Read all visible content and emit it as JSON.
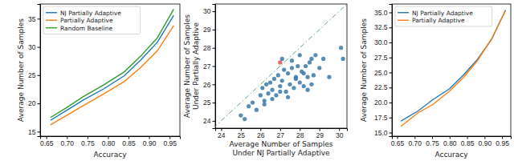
{
  "chart_data": [
    {
      "type": "line",
      "x_label": "Accuracy",
      "y_label": "Average Number of Samples",
      "x": [
        0.66,
        0.7,
        0.74,
        0.79,
        0.84,
        0.88,
        0.92,
        0.96
      ],
      "series": [
        {
          "name": "NJ Partially Adaptive",
          "color": "#1f77b4",
          "values": [
            17.0,
            18.8,
            20.6,
            22.6,
            24.9,
            27.7,
            30.8,
            35.6
          ]
        },
        {
          "name": "Partially Adaptive",
          "color": "#ff7f0e",
          "values": [
            16.2,
            17.9,
            19.6,
            21.7,
            23.9,
            26.4,
            29.3,
            33.8
          ]
        },
        {
          "name": "Random Baseline",
          "color": "#2ca02c",
          "values": [
            17.5,
            19.3,
            21.2,
            23.3,
            25.6,
            28.4,
            31.6,
            36.7
          ]
        }
      ],
      "xlim": [
        0.635,
        0.975
      ],
      "ylim": [
        14.2,
        37.6
      ],
      "xticks": [
        {
          "value": 0.65,
          "label": "0.65"
        },
        {
          "value": 0.7,
          "label": "0.70"
        },
        {
          "value": 0.75,
          "label": "0.75"
        },
        {
          "value": 0.8,
          "label": "0.80"
        },
        {
          "value": 0.85,
          "label": "0.85"
        },
        {
          "value": 0.9,
          "label": "0.90"
        },
        {
          "value": 0.95,
          "label": "0.95"
        }
      ],
      "yticks": [
        15,
        20,
        25,
        30,
        35
      ],
      "legend": "upper left",
      "grid": false
    },
    {
      "type": "scatter",
      "x_label": [
        "Average Number of Samples",
        "Under NJ Partially Adaptive"
      ],
      "y_label": [
        "Average Number of Samples",
        "Under Partially Adaptive"
      ],
      "series": [
        {
          "color": "#3a78a8",
          "x": [
            25.0,
            25.2,
            25.4,
            25.6,
            25.8,
            26.0,
            26.1,
            26.2,
            26.3,
            26.4,
            26.5,
            26.6,
            26.7,
            26.8,
            26.9,
            27.0,
            27.1,
            27.2,
            27.3,
            27.4,
            27.5,
            27.6,
            27.7,
            27.8,
            27.9,
            28.0,
            28.1,
            28.2,
            28.3,
            28.4,
            28.5,
            28.6,
            28.7,
            28.8,
            29.0,
            29.2,
            29.5,
            30.1,
            30.2,
            26.2,
            26.6,
            27.0,
            27.4,
            27.8,
            28.2,
            28.6,
            27.1,
            27.6,
            28.0,
            28.4
          ],
          "values": [
            24.3,
            24.1,
            24.8,
            25.0,
            24.6,
            25.4,
            25.8,
            25.1,
            26.0,
            25.5,
            26.1,
            25.7,
            26.3,
            25.4,
            26.5,
            25.9,
            26.2,
            26.8,
            25.6,
            26.6,
            26.0,
            26.9,
            25.8,
            26.4,
            27.0,
            26.1,
            26.7,
            25.9,
            27.0,
            26.4,
            27.2,
            26.0,
            26.5,
            27.6,
            26.9,
            27.4,
            26.4,
            28.0,
            27.4,
            24.9,
            25.2,
            25.6,
            25.3,
            26.3,
            26.6,
            27.4,
            27.4,
            27.3,
            27.6,
            25.7
          ]
        },
        {
          "color": "#d9534f",
          "x": [
            27.0
          ],
          "values": [
            27.2
          ]
        }
      ],
      "xlim": [
        23.7,
        30.4
      ],
      "ylim": [
        23.6,
        30.4
      ],
      "xticks": [
        24,
        25,
        26,
        27,
        28,
        29,
        30
      ],
      "yticks": [
        24,
        25,
        26,
        27,
        28,
        29,
        30
      ],
      "line_style": "dashdot",
      "grid": false
    },
    {
      "type": "line",
      "x_label": "Accuracy",
      "y_label": "Average Number of Samples",
      "x": [
        0.66,
        0.71,
        0.75,
        0.8,
        0.84,
        0.88,
        0.92,
        0.96
      ],
      "series": [
        {
          "name": "NJ Partially Adaptive",
          "color": "#1f77b4",
          "values": [
            16.9,
            18.6,
            20.4,
            22.3,
            24.6,
            27.2,
            30.5,
            35.4
          ]
        },
        {
          "name": "Partially Adaptive",
          "color": "#ff7f0e",
          "values": [
            16.0,
            18.3,
            19.6,
            21.9,
            24.2,
            27.0,
            30.6,
            35.3
          ]
        }
      ],
      "xlim": [
        0.635,
        0.975
      ],
      "ylim": [
        14.4,
        36.4
      ],
      "xticks": [
        {
          "value": 0.65,
          "label": "0.65"
        },
        {
          "value": 0.7,
          "label": "0.70"
        },
        {
          "value": 0.75,
          "label": "0.75"
        },
        {
          "value": 0.8,
          "label": "0.80"
        },
        {
          "value": 0.85,
          "label": "0.85"
        },
        {
          "value": 0.9,
          "label": "0.90"
        },
        {
          "value": 0.95,
          "label": "0.95"
        }
      ],
      "yticks": [
        {
          "value": 15,
          "label": "15.0"
        },
        {
          "value": 17.5,
          "label": "17.5"
        },
        {
          "value": 20,
          "label": "20.0"
        },
        {
          "value": 22.5,
          "label": "22.5"
        },
        {
          "value": 25,
          "label": "25.0"
        },
        {
          "value": 27.5,
          "label": "27.5"
        },
        {
          "value": 30,
          "label": "30.0"
        },
        {
          "value": 32.5,
          "label": "32.5"
        },
        {
          "value": 35,
          "label": "35.0"
        }
      ],
      "legend": "upper left",
      "grid": false
    }
  ]
}
